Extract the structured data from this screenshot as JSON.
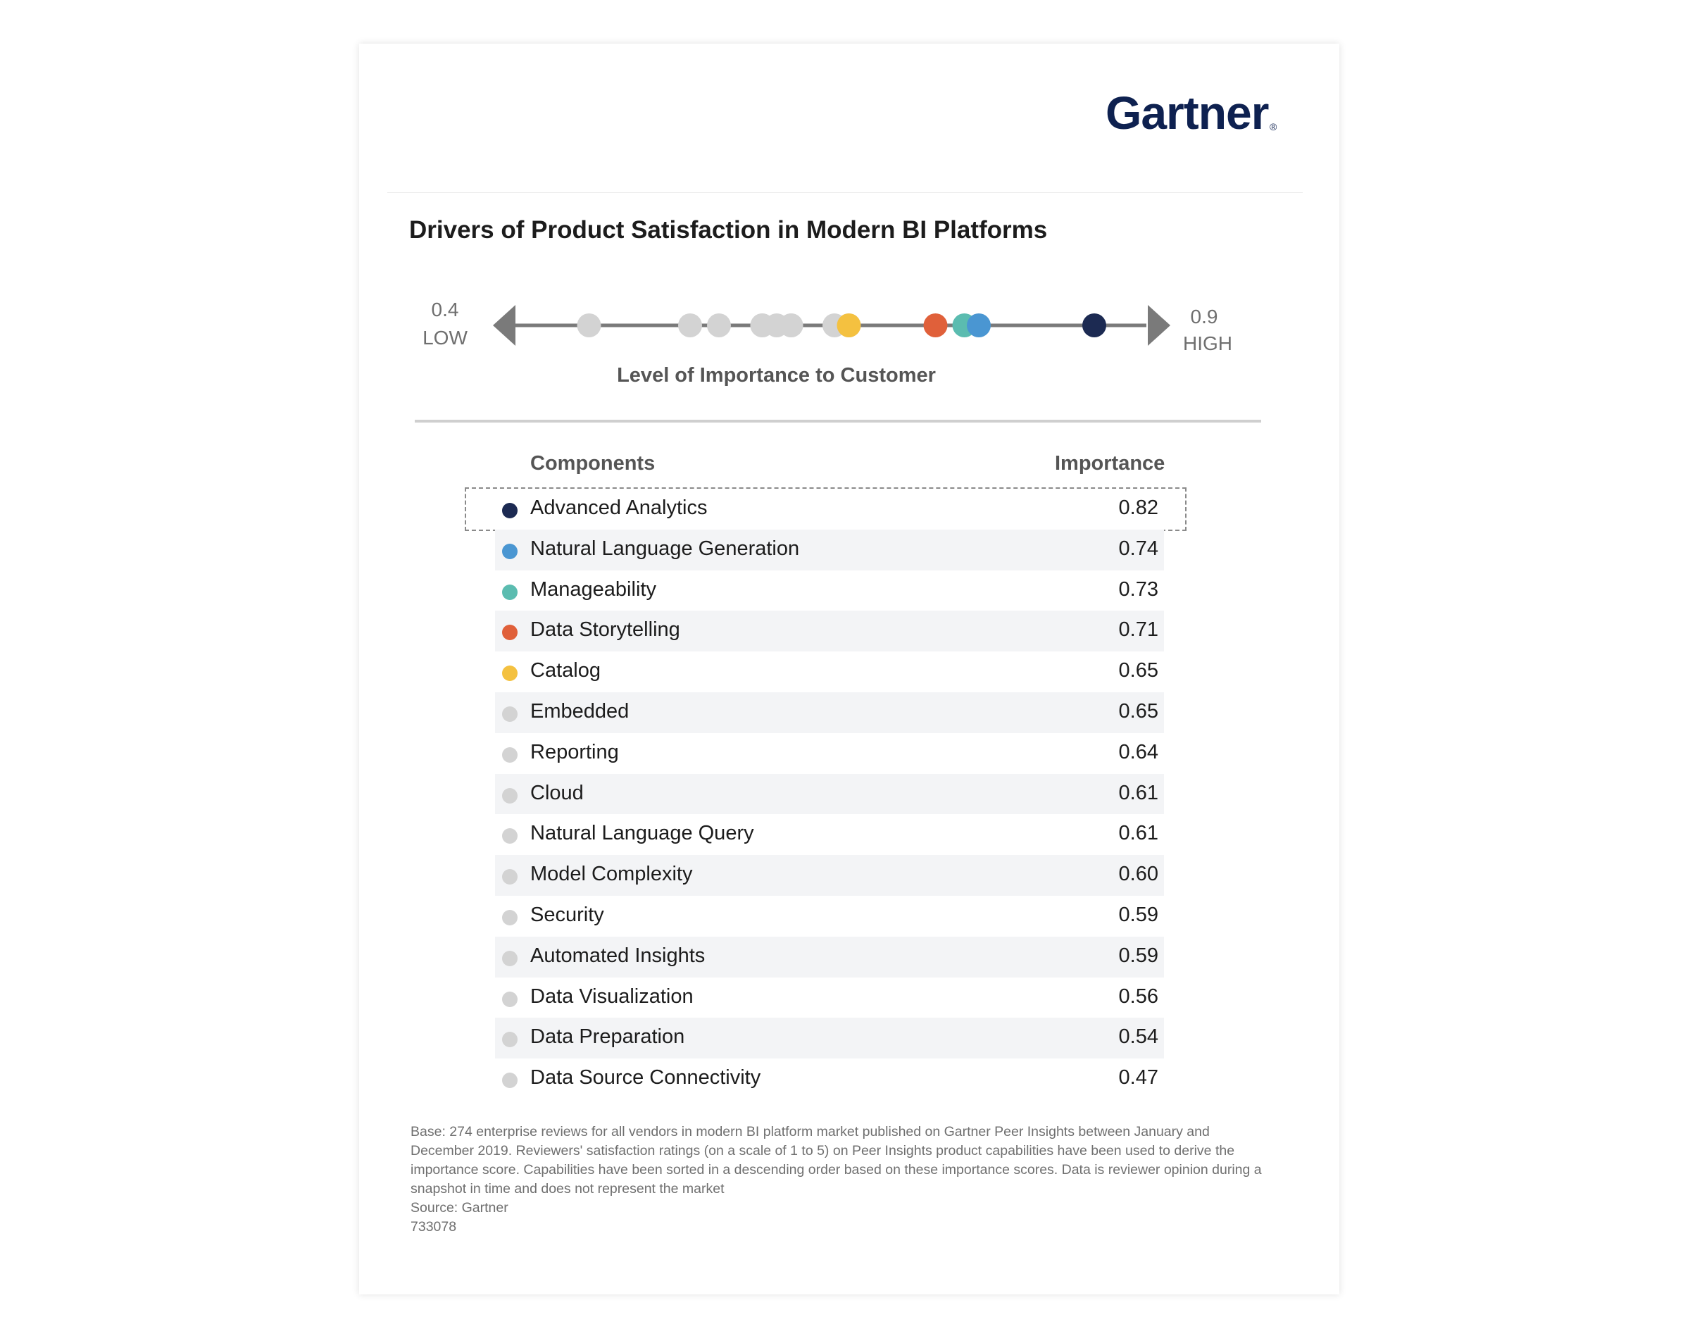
{
  "logo": {
    "text": "Gartner",
    "reg_mark": "®"
  },
  "title": "Drivers of Product Satisfaction in Modern BI Platforms",
  "axis": {
    "min_value": "0.4",
    "min_label": "LOW",
    "max_value": "0.9",
    "max_label": "HIGH",
    "title": "Level of Importance to Customer"
  },
  "table": {
    "col_components": "Components",
    "col_importance": "Importance"
  },
  "colors": {
    "advanced_analytics": "#1c2a52",
    "natural_language_generation": "#4a96d2",
    "manageability": "#5bbcb0",
    "data_storytelling": "#e0603a",
    "catalog": "#f4c140",
    "other": "#d3d3d3",
    "axis_line": "#7a7a7a"
  },
  "chart_data": {
    "type": "scatter",
    "title": "Drivers of Product Satisfaction in Modern BI Platforms",
    "xlabel": "Level of Importance to Customer",
    "xlim": [
      0.4,
      0.9
    ],
    "highlighted": "Advanced Analytics",
    "series": [
      {
        "name": "Advanced Analytics",
        "value": 0.82,
        "display": "0.82",
        "color": "#1c2a52"
      },
      {
        "name": "Natural Language Generation",
        "value": 0.74,
        "display": "0.74",
        "color": "#4a96d2"
      },
      {
        "name": "Manageability",
        "value": 0.73,
        "display": "0.73",
        "color": "#5bbcb0"
      },
      {
        "name": "Data Storytelling",
        "value": 0.71,
        "display": "0.71",
        "color": "#e0603a"
      },
      {
        "name": "Catalog",
        "value": 0.65,
        "display": "0.65",
        "color": "#f4c140"
      },
      {
        "name": "Embedded",
        "value": 0.65,
        "display": "0.65",
        "color": "#d3d3d3"
      },
      {
        "name": "Reporting",
        "value": 0.64,
        "display": "0.64",
        "color": "#d3d3d3"
      },
      {
        "name": "Cloud",
        "value": 0.61,
        "display": "0.61",
        "color": "#d3d3d3"
      },
      {
        "name": "Natural Language Query",
        "value": 0.61,
        "display": "0.61",
        "color": "#d3d3d3"
      },
      {
        "name": "Model Complexity",
        "value": 0.6,
        "display": "0.60",
        "color": "#d3d3d3"
      },
      {
        "name": "Security",
        "value": 0.59,
        "display": "0.59",
        "color": "#d3d3d3"
      },
      {
        "name": "Automated Insights",
        "value": 0.59,
        "display": "0.59",
        "color": "#d3d3d3"
      },
      {
        "name": "Data Visualization",
        "value": 0.56,
        "display": "0.56",
        "color": "#d3d3d3"
      },
      {
        "name": "Data Preparation",
        "value": 0.54,
        "display": "0.54",
        "color": "#d3d3d3"
      },
      {
        "name": "Data Source Connectivity",
        "value": 0.47,
        "display": "0.47",
        "color": "#d3d3d3"
      }
    ]
  },
  "footnote": {
    "base": "Base: 274 enterprise reviews for all vendors in modern BI platform market published on Gartner Peer Insights between January and December 2019. Reviewers' satisfaction ratings (on a scale of 1 to 5) on Peer Insights product capabilities have been used to derive the importance score. Capabilities have been sorted in a descending order based on these importance scores. Data is reviewer opinion during a snapshot in time and does not represent the market",
    "source": "Source: Gartner",
    "id": "733078"
  }
}
